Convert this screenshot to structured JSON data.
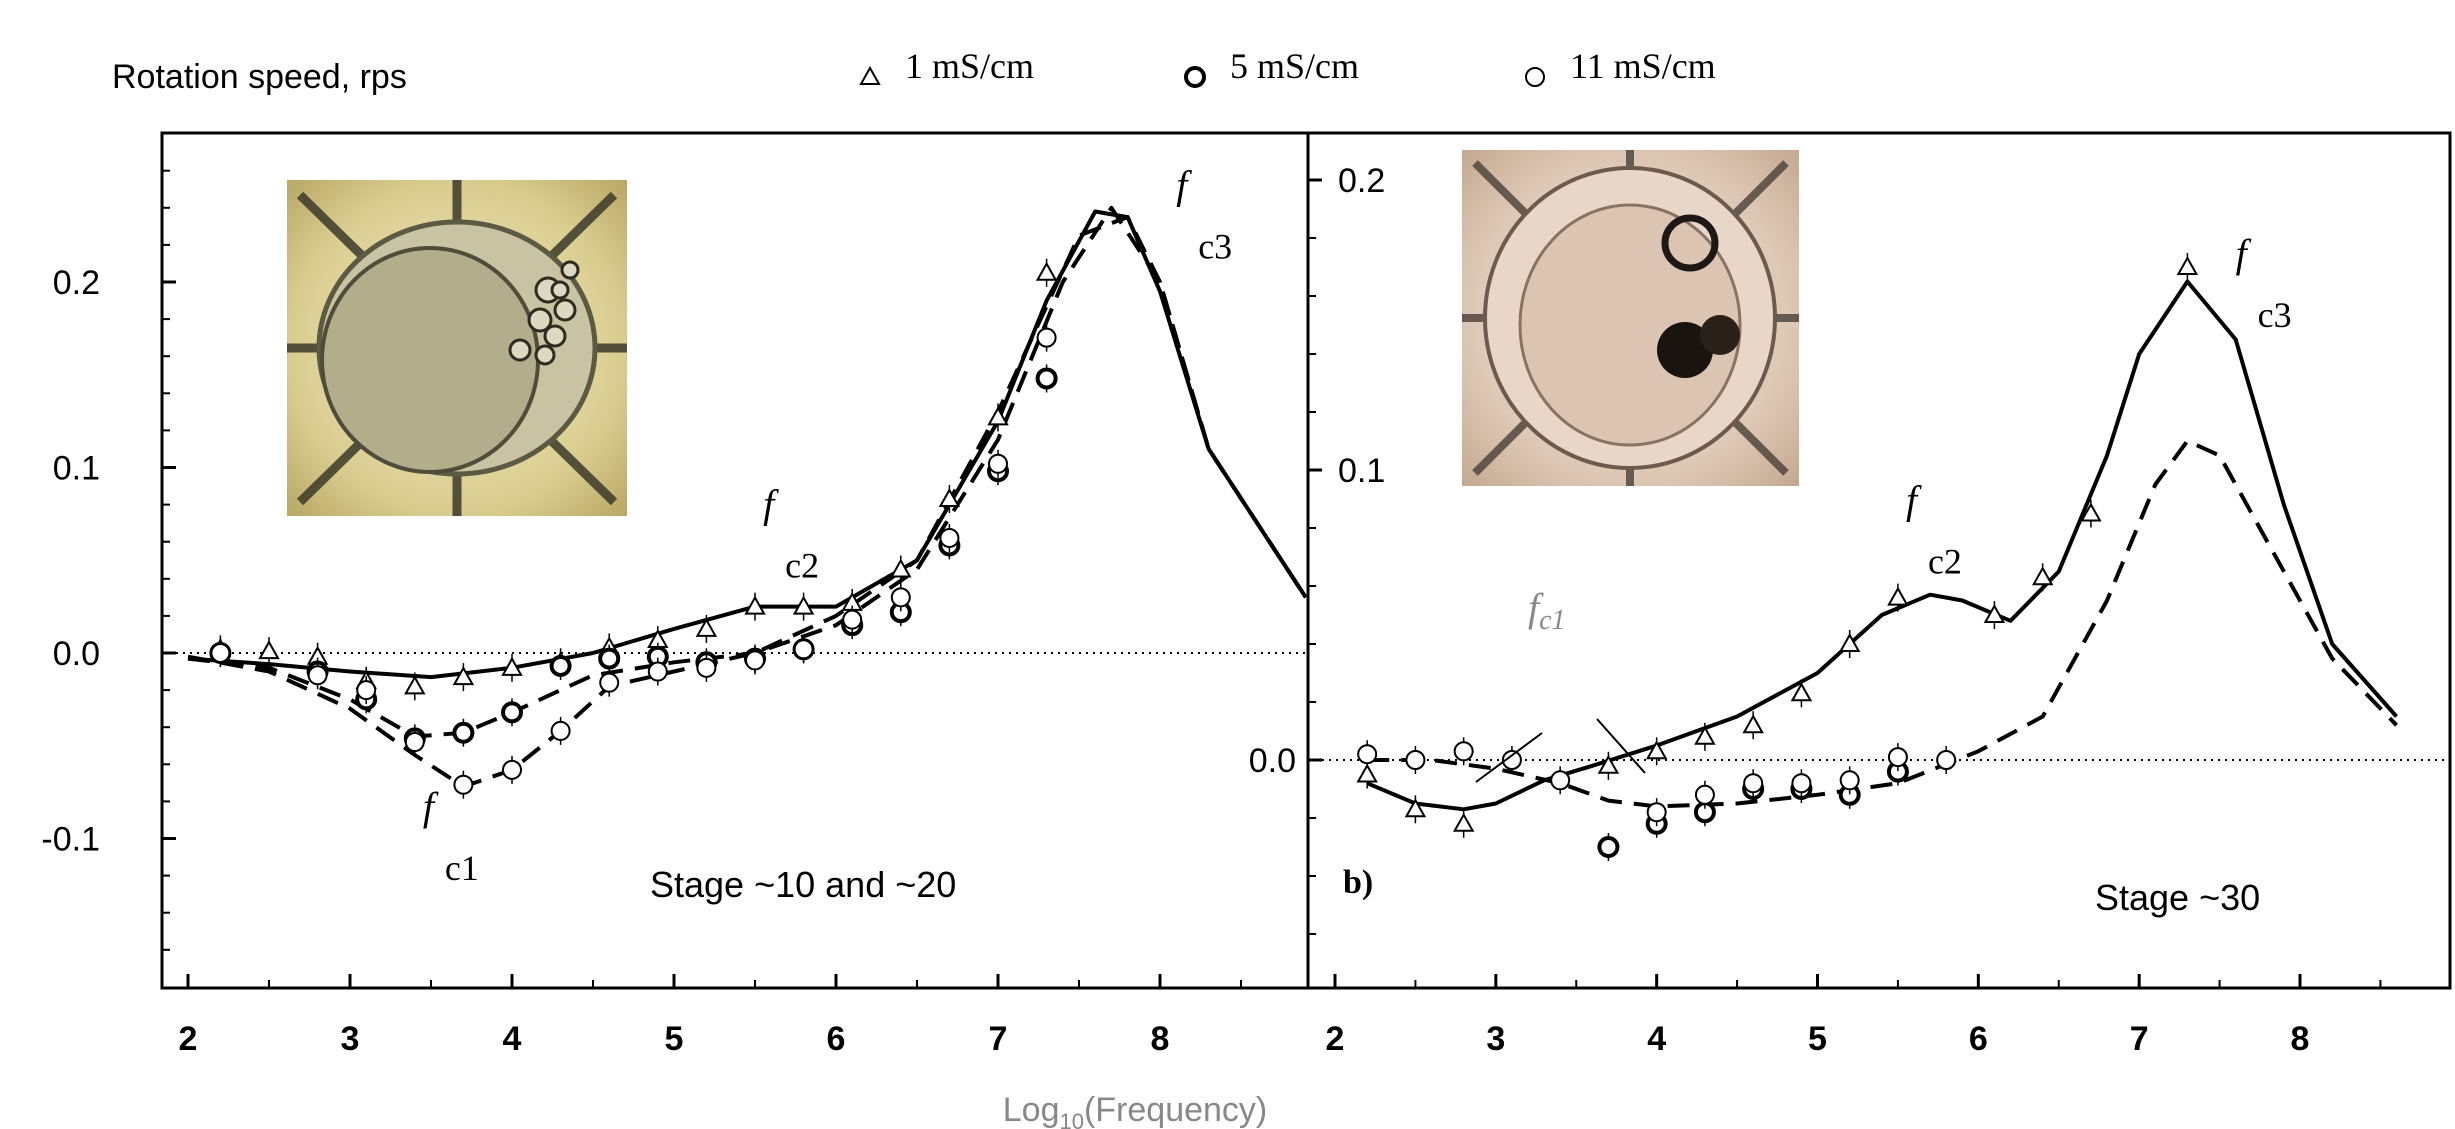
{
  "chart_data": [
    {
      "type": "line",
      "panel": "a",
      "ylabel": "Rotation speed, rps",
      "xlabel": "Log10(Frequency)",
      "xlim": [
        1.8,
        8.9
      ],
      "ylim": [
        -0.18,
        0.28
      ],
      "x_ticks": [
        "2",
        "3",
        "4",
        "5",
        "6",
        "7",
        "8"
      ],
      "y_ticks": [
        "0.2",
        "0.1",
        "0.0",
        "-0.1"
      ],
      "annotation": "Stage ~10 and ~20",
      "markers": [
        {
          "name": "1 mS/cm",
          "symbol": "triangle",
          "x": [
            2.2,
            2.5,
            2.8,
            3.1,
            3.4,
            3.7,
            4.0,
            4.3,
            4.6,
            4.9,
            5.2,
            5.5,
            5.8,
            6.1,
            6.4,
            6.7,
            7.0,
            7.3
          ],
          "y": [
            0.002,
            0.001,
            -0.002,
            -0.015,
            -0.018,
            -0.013,
            -0.008,
            -0.005,
            0.003,
            0.007,
            0.013,
            0.025,
            0.025,
            0.027,
            0.045,
            0.083,
            0.127,
            0.205
          ]
        },
        {
          "name": "5 mS/cm",
          "symbol": "circle-bold",
          "x": [
            2.2,
            2.8,
            3.1,
            3.4,
            3.7,
            4.0,
            4.3,
            4.6,
            4.9,
            5.2,
            5.5,
            5.8,
            6.1,
            6.4,
            6.7,
            7.0,
            7.3
          ],
          "y": [
            0.0,
            -0.01,
            -0.025,
            -0.046,
            -0.043,
            -0.032,
            -0.007,
            -0.003,
            -0.002,
            -0.005,
            -0.003,
            0.002,
            0.015,
            0.022,
            0.058,
            0.098,
            0.148
          ]
        },
        {
          "name": "11 mS/cm",
          "symbol": "circle",
          "x": [
            2.2,
            2.8,
            3.1,
            3.4,
            3.7,
            4.0,
            4.3,
            4.6,
            4.9,
            5.2,
            5.5,
            5.8,
            6.1,
            6.4,
            6.7,
            7.0,
            7.3
          ],
          "y": [
            0.0,
            -0.012,
            -0.02,
            -0.048,
            -0.071,
            -0.063,
            -0.042,
            -0.016,
            -0.01,
            -0.008,
            -0.004,
            0.002,
            0.018,
            0.03,
            0.062,
            0.102,
            0.17
          ]
        }
      ],
      "curves": [
        {
          "style": "solid",
          "x": [
            2.0,
            2.5,
            3.0,
            3.5,
            4.0,
            4.5,
            5.0,
            5.5,
            6.0,
            6.5,
            7.0,
            7.3,
            7.6,
            7.8,
            8.0,
            8.3,
            8.9
          ],
          "y": [
            -0.003,
            -0.006,
            -0.01,
            -0.013,
            -0.008,
            0.0,
            0.013,
            0.025,
            0.025,
            0.05,
            0.125,
            0.19,
            0.238,
            0.235,
            0.195,
            0.11,
            0.03
          ]
        },
        {
          "style": "dashed",
          "x": [
            2.0,
            2.5,
            3.0,
            3.4,
            3.7,
            4.0,
            4.5,
            5.0,
            5.5,
            6.0,
            6.5,
            7.0,
            7.4,
            7.7,
            8.0,
            8.3,
            8.9
          ],
          "y": [
            -0.003,
            -0.008,
            -0.025,
            -0.045,
            -0.043,
            -0.032,
            -0.012,
            -0.005,
            0.0,
            0.015,
            0.045,
            0.115,
            0.2,
            0.24,
            0.2,
            0.11,
            0.03
          ]
        },
        {
          "style": "dashed",
          "x": [
            2.0,
            2.5,
            3.0,
            3.4,
            3.7,
            4.0,
            4.3,
            4.6,
            5.0,
            5.5,
            6.0,
            6.5,
            7.0,
            7.5,
            7.8,
            8.0,
            8.3,
            8.9
          ],
          "y": [
            -0.002,
            -0.01,
            -0.03,
            -0.055,
            -0.072,
            -0.063,
            -0.042,
            -0.018,
            -0.01,
            0.0,
            0.02,
            0.05,
            0.13,
            0.225,
            0.235,
            0.2,
            0.11,
            0.03
          ]
        }
      ],
      "labels": [
        {
          "text": "f",
          "sub": "c1",
          "x": 3.45,
          "y": -0.09
        },
        {
          "text": "f",
          "sub": "c2",
          "x": 5.55,
          "y": 0.073
        },
        {
          "text": "f",
          "sub": "c3",
          "x": 8.1,
          "y": 0.245
        }
      ]
    },
    {
      "type": "line",
      "panel": "b",
      "panel_label": "b)",
      "xlim": [
        1.95,
        8.9
      ],
      "ylim": [
        -0.08,
        0.205
      ],
      "x_ticks": [
        "2",
        "3",
        "4",
        "5",
        "6",
        "7",
        "8"
      ],
      "y_ticks": [
        "0.2",
        "0.1",
        "0.0"
      ],
      "annotation": "Stage ~30",
      "markers": [
        {
          "name": "1 mS/cm",
          "symbol": "triangle",
          "x": [
            2.2,
            2.5,
            2.8,
            3.7,
            4.0,
            4.3,
            4.6,
            4.9,
            5.2,
            5.5,
            6.1,
            6.4,
            6.7,
            7.3
          ],
          "y": [
            -0.005,
            -0.017,
            -0.022,
            -0.002,
            0.003,
            0.008,
            0.012,
            0.023,
            0.04,
            0.056,
            0.05,
            0.063,
            0.085,
            0.17
          ]
        },
        {
          "name": "5 mS/cm",
          "symbol": "circle-bold",
          "x": [
            3.7,
            4.0,
            4.3,
            4.6,
            4.9,
            5.2,
            5.5
          ],
          "y": [
            -0.03,
            -0.022,
            -0.018,
            -0.01,
            -0.01,
            -0.012,
            -0.004
          ]
        },
        {
          "name": "11 mS/cm",
          "symbol": "circle",
          "x": [
            2.2,
            2.5,
            2.8,
            3.1,
            3.4,
            4.0,
            4.3,
            4.6,
            4.9,
            5.2,
            5.5,
            5.8
          ],
          "y": [
            0.002,
            0.0,
            0.003,
            0.0,
            -0.007,
            -0.018,
            -0.012,
            -0.008,
            -0.008,
            -0.007,
            0.001,
            0.0
          ]
        }
      ],
      "curves": [
        {
          "style": "solid",
          "x": [
            2.2,
            2.5,
            2.8,
            3.0,
            3.3,
            3.6,
            4.0,
            4.5,
            5.0,
            5.4,
            5.7,
            5.9,
            6.2,
            6.5,
            6.8,
            7.0,
            7.3,
            7.6,
            7.9,
            8.2,
            8.6
          ],
          "y": [
            -0.008,
            -0.015,
            -0.017,
            -0.015,
            -0.007,
            -0.002,
            0.005,
            0.015,
            0.03,
            0.05,
            0.057,
            0.055,
            0.048,
            0.065,
            0.105,
            0.14,
            0.165,
            0.145,
            0.088,
            0.04,
            0.015
          ]
        },
        {
          "style": "dashed",
          "x": [
            2.2,
            2.6,
            3.0,
            3.4,
            3.7,
            4.0,
            4.5,
            5.0,
            5.5,
            6.0,
            6.4,
            6.8,
            7.1,
            7.3,
            7.5,
            7.8,
            8.2,
            8.6
          ],
          "y": [
            0.0,
            0.0,
            -0.003,
            -0.008,
            -0.014,
            -0.016,
            -0.015,
            -0.012,
            -0.008,
            0.003,
            0.015,
            0.055,
            0.095,
            0.11,
            0.105,
            0.075,
            0.035,
            0.012
          ]
        }
      ],
      "labels": [
        {
          "text": "f",
          "sub": "c1",
          "x": 3.2,
          "y": 0.048,
          "color": "#888888"
        },
        {
          "text": "f",
          "sub": "c2",
          "x": 5.55,
          "y": 0.085
        },
        {
          "text": "f",
          "sub": "c3",
          "x": 7.6,
          "y": 0.17
        }
      ]
    }
  ],
  "legend": {
    "ylabel": "Rotation speed, rps",
    "entries": [
      {
        "symbol": "triangle",
        "label": "1 mS/cm"
      },
      {
        "symbol": "circle-bold",
        "label": "5 mS/cm"
      },
      {
        "symbol": "circle",
        "label": "11 mS/cm"
      }
    ]
  },
  "xlabel": "Log10(Frequency)",
  "colors": {
    "axis": "#000000",
    "xlabel": "#888888",
    "photo_a": "#d6c98a",
    "photo_b": "#d9c2a8"
  },
  "insets": [
    {
      "panel": "a",
      "description_icon": "embryo-photo-stage-10-20"
    },
    {
      "panel": "b",
      "description_icon": "embryo-photo-stage-30"
    }
  ]
}
